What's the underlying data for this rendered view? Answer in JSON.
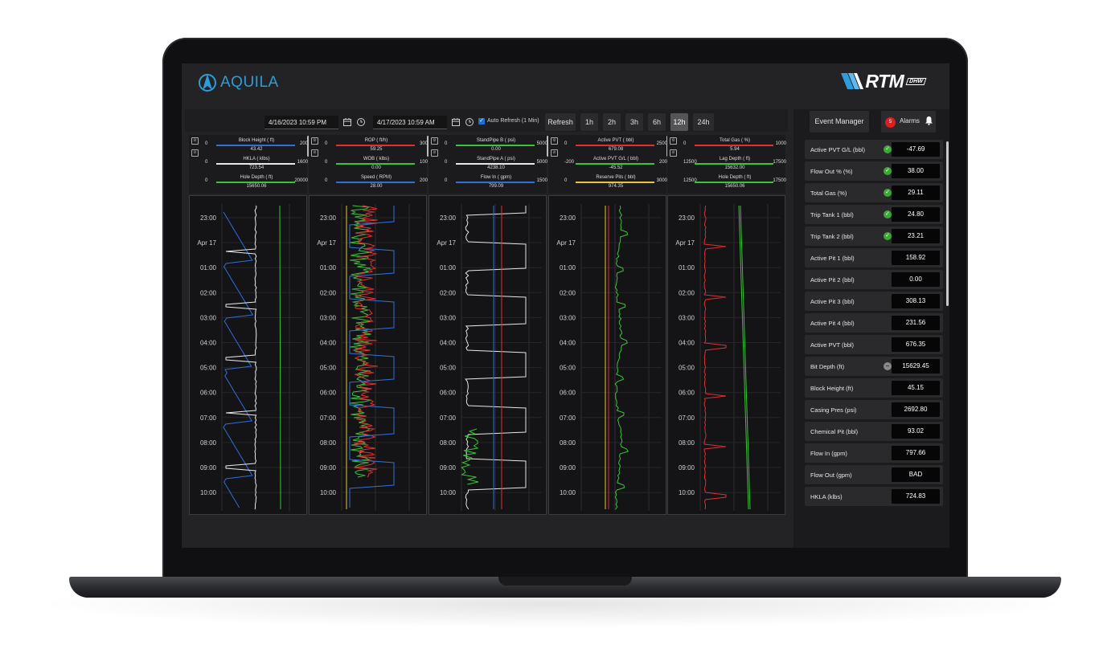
{
  "app": {
    "logo_text": "AQUILA",
    "brand": "RTM",
    "brand_sub": "DHW"
  },
  "toolbar": {
    "start_date": "4/16/2023 10:59 PM",
    "end_date": "4/17/2023 10:59 AM",
    "auto_refresh_label": "Auto Refresh (1 Min)",
    "auto_refresh_checked": true,
    "refresh_label": "Refresh",
    "ranges": [
      "1h",
      "2h",
      "3h",
      "6h",
      "12h",
      "24h"
    ],
    "active_range": "12h"
  },
  "right_panel": {
    "event_manager_label": "Event Manager",
    "alarms_label": "Alarms",
    "alarms_count": "5"
  },
  "time_labels": [
    "23:00",
    "Apr 17",
    "01:00",
    "02:00",
    "03:00",
    "04:00",
    "05:00",
    "06:00",
    "07:00",
    "08:00",
    "09:00",
    "10:00"
  ],
  "tracks": [
    {
      "curves": [
        {
          "name": "Block Height ( ft)",
          "min": "0",
          "max": "200",
          "value": "43.42",
          "color": "#2f6fd8"
        },
        {
          "name": "HKLA ( klbs)",
          "min": "0",
          "max": "1600",
          "value": "723.54",
          "color": "#e6e6e6"
        },
        {
          "name": "Hole Depth ( ft)",
          "min": "0",
          "max": "20000",
          "value": "15650.06",
          "color": "#3cc23c"
        }
      ]
    },
    {
      "curves": [
        {
          "name": "ROP ( ft/h)",
          "min": "0",
          "max": "300",
          "value": "59.25",
          "color": "#e03030"
        },
        {
          "name": "WOB ( klbs)",
          "min": "0",
          "max": "100",
          "value": "0.00",
          "color": "#3cc23c"
        },
        {
          "name": "Speed ( RPM)",
          "min": "0",
          "max": "200",
          "value": "28.00",
          "color": "#2f6fd8"
        }
      ]
    },
    {
      "curves": [
        {
          "name": "StandPipe B ( psi)",
          "min": "0",
          "max": "5000",
          "value": "0.00",
          "color": "#3cc23c"
        },
        {
          "name": "StandPipe A ( psi)",
          "min": "0",
          "max": "5000",
          "value": "4238.10",
          "color": "#e6e6e6"
        },
        {
          "name": "Flow In ( gpm)",
          "min": "0",
          "max": "1500",
          "value": "799.09",
          "color": "#2f6fd8"
        }
      ]
    },
    {
      "curves": [
        {
          "name": "Active PVT ( bbl)",
          "min": "0",
          "max": "2500",
          "value": "679.08",
          "color": "#e03030"
        },
        {
          "name": "Active PVT G/L ( bbl)",
          "min": "-200",
          "max": "200",
          "value": "-45.52",
          "color": "#3cc23c"
        },
        {
          "name": "Reserve Pits ( bbl)",
          "min": "0",
          "max": "3000",
          "value": "974.35",
          "color": "#e8c830"
        }
      ]
    },
    {
      "curves": [
        {
          "name": "Total Gas ( %)",
          "min": "0",
          "max": "1000",
          "value": "5.94",
          "color": "#e03030"
        },
        {
          "name": "Lag Depth ( ft)",
          "min": "12500",
          "max": "17500",
          "value": "15632.00",
          "color": "#3cc23c"
        },
        {
          "name": "Hole Depth ( ft)",
          "min": "12500",
          "max": "17500",
          "value": "15650.06",
          "color": "#3cc23c"
        }
      ]
    }
  ],
  "readings": [
    {
      "label": "Active PVT G/L (bbl)",
      "value": "-47.69",
      "status": "ok"
    },
    {
      "label": "Flow Out % (%)",
      "value": "38.00",
      "status": "ok"
    },
    {
      "label": "Total Gas (%)",
      "value": "29.11",
      "status": "ok"
    },
    {
      "label": "Trip Tank 1 (bbl)",
      "value": "24.80",
      "status": "ok"
    },
    {
      "label": "Trip Tank 2 (bbl)",
      "value": "23.21",
      "status": "ok"
    },
    {
      "label": "Active Pit 1 (bbl)",
      "value": "158.92",
      "status": "none"
    },
    {
      "label": "Active Pit 2 (bbl)",
      "value": "0.00",
      "status": "none"
    },
    {
      "label": "Active Pit 3 (bbl)",
      "value": "308.13",
      "status": "none"
    },
    {
      "label": "Active Pit 4 (bbl)",
      "value": "231.56",
      "status": "none"
    },
    {
      "label": "Active PVT (bbl)",
      "value": "676.35",
      "status": "none"
    },
    {
      "label": "Bit Depth (ft)",
      "value": "15629.45",
      "status": "na"
    },
    {
      "label": "Block Height (ft)",
      "value": "45.15",
      "status": "none"
    },
    {
      "label": "Casing Pres (psi)",
      "value": "2692.80",
      "status": "none"
    },
    {
      "label": "Chemical Pit (bbl)",
      "value": "93.02",
      "status": "none"
    },
    {
      "label": "Flow In (gpm)",
      "value": "797.66",
      "status": "none"
    },
    {
      "label": "Flow Out (gpm)",
      "value": "BAD",
      "status": "none"
    },
    {
      "label": "HKLA (klbs)",
      "value": "724.83",
      "status": "none"
    }
  ]
}
